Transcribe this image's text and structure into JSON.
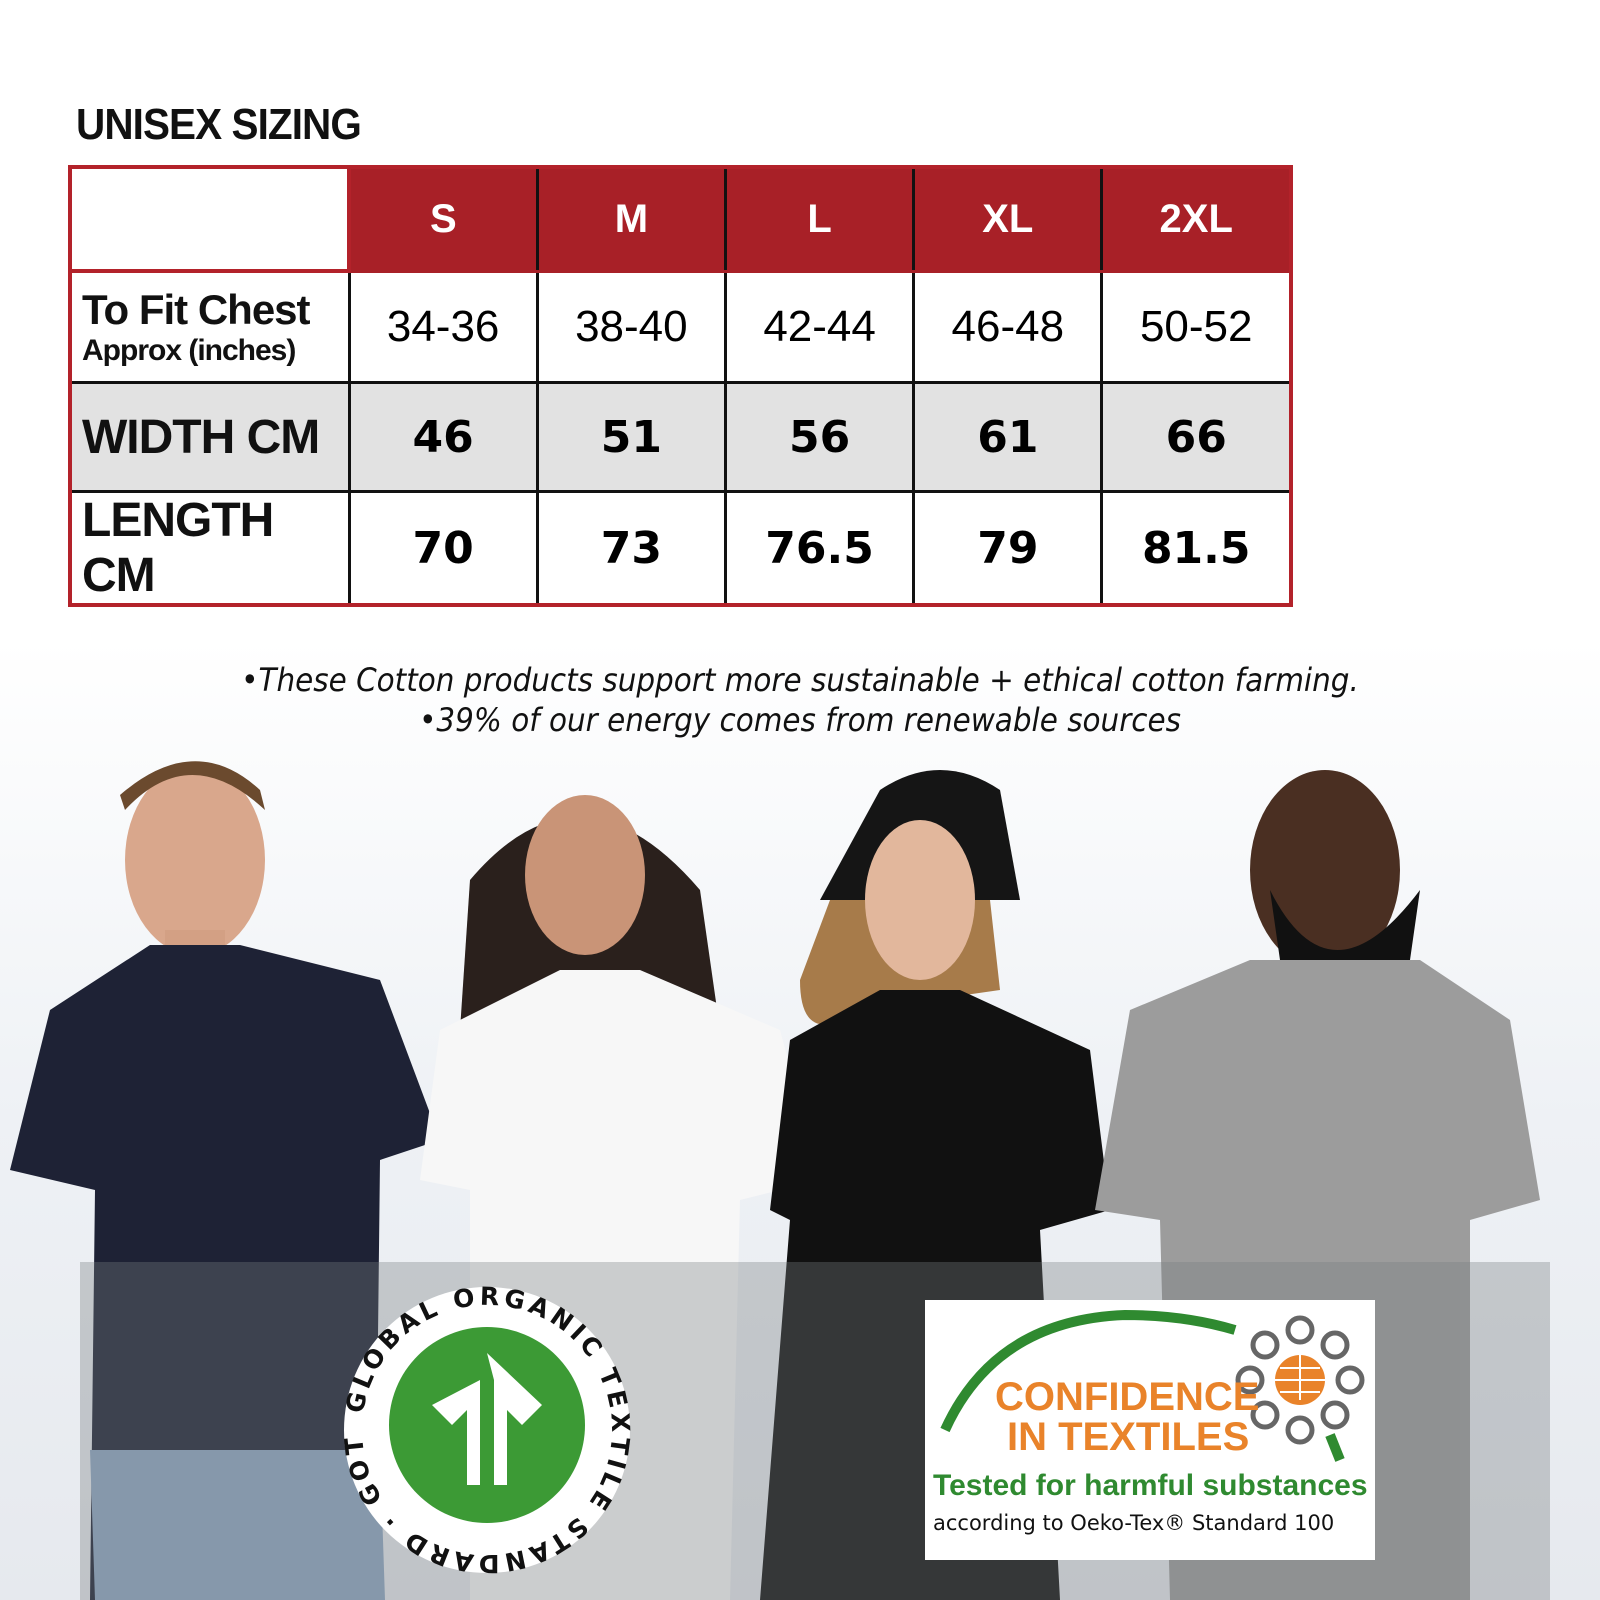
{
  "title": "UNISEX SIZING",
  "table": {
    "sizes": [
      "S",
      "M",
      "L",
      "XL",
      "2XL"
    ],
    "rows": [
      {
        "label_line1": "To Fit Chest",
        "label_line2": "Approx (inches)",
        "values": [
          "34-36",
          "38-40",
          "42-44",
          "46-48",
          "50-52"
        ]
      },
      {
        "label": "WIDTH CM",
        "values": [
          "46",
          "51",
          "56",
          "61",
          "66"
        ]
      },
      {
        "label": "LENGTH CM",
        "values": [
          "70",
          "73",
          "76.5",
          "79",
          "81.5"
        ]
      }
    ]
  },
  "notes": [
    "•These Cotton products support more sustainable + ethical cotton farming.",
    "•39% of our energy comes from renewable sources"
  ],
  "gots_logo": {
    "text": "GLOBAL ORGANIC TEXTILE STANDARD · GOTS ·",
    "color": "#3c9a35"
  },
  "oeko_logo": {
    "line1": "CONFIDENCE",
    "line2": "IN TEXTILES",
    "tagline": "Tested for harmful substances",
    "sub": "according to Oeko-Tex® Standard 100",
    "orange": "#e9832a",
    "green": "#2f8a30"
  },
  "colors": {
    "header_red": "#a82027",
    "tshirts": [
      "#1e2235",
      "#f7f7f7",
      "#111111",
      "#9c9c9c"
    ]
  }
}
